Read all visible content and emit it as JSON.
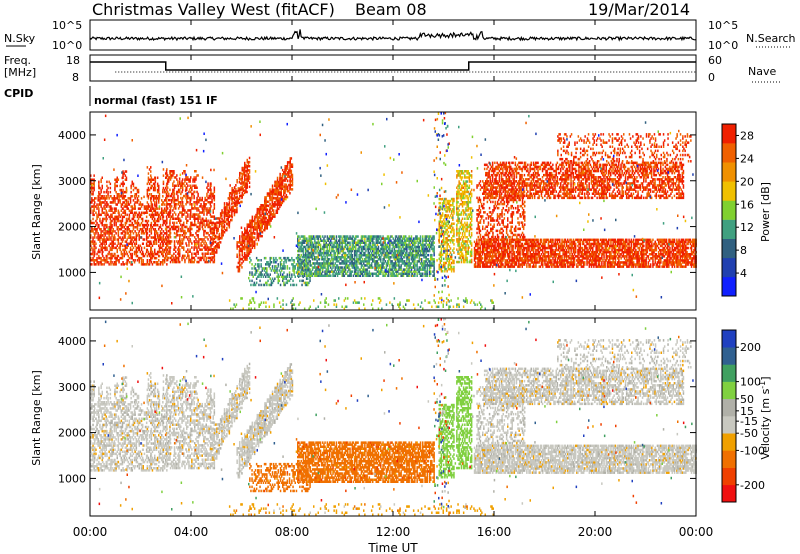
{
  "header": {
    "title": "Christmas Valley West (fitACF)",
    "beam": "Beam 08",
    "date": "19/Mar/2014"
  },
  "panels": {
    "nsky": {
      "label": "N.Sky",
      "tick_top": "10^5",
      "tick_bottom": "10^0",
      "right_label": "N.Search",
      "right_tick_top": "10^5",
      "right_tick_bottom": "10^0"
    },
    "freq": {
      "label_line1": "Freq.",
      "label_line2": "[MHz]",
      "tick_top": "18",
      "tick_bottom": "8",
      "right_label": "Nave",
      "right_tick_top": "60",
      "right_tick_bottom": "0"
    },
    "cpid": {
      "label": "CPID",
      "text": "normal (fast) 151 IF"
    }
  },
  "colors": {
    "power": [
      "#1020ff",
      "#2040b0",
      "#306080",
      "#40a080",
      "#80d030",
      "#f0c000",
      "#f09000",
      "#f06000",
      "#f02000"
    ],
    "velocity": [
      "#f01010",
      "#f04000",
      "#f07000",
      "#f0a000",
      "#c8c8c0",
      "#b0b0a8",
      "#80d040",
      "#40a060",
      "#306090",
      "#2040c0"
    ]
  },
  "chart_data": [
    {
      "type": "heatmap",
      "name": "power",
      "ylabel": "Slant Range [km]",
      "yticks": [
        "1000",
        "2000",
        "3000",
        "4000"
      ],
      "ylim": [
        180,
        4500
      ],
      "colorbar_label": "Power [dB]",
      "colorbar_ticks": [
        "4",
        "8",
        "12",
        "16",
        "20",
        "24",
        "28"
      ],
      "clim": [
        0,
        30
      ]
    },
    {
      "type": "heatmap",
      "name": "velocity",
      "ylabel": "Slant Range [km]",
      "yticks": [
        "1000",
        "2000",
        "3000",
        "4000"
      ],
      "ylim": [
        180,
        4500
      ],
      "colorbar_label": "Velocity [m s^-1]",
      "colorbar_ticks": [
        "-200",
        "-100",
        "-50",
        "-15",
        "15",
        "50",
        "100",
        "200"
      ],
      "clim": [
        -250,
        250
      ]
    }
  ],
  "xaxis": {
    "label": "Time UT",
    "ticks": [
      "00:00",
      "04:00",
      "08:00",
      "12:00",
      "16:00",
      "20:00",
      "00:00"
    ],
    "xlim": [
      0,
      24
    ]
  }
}
